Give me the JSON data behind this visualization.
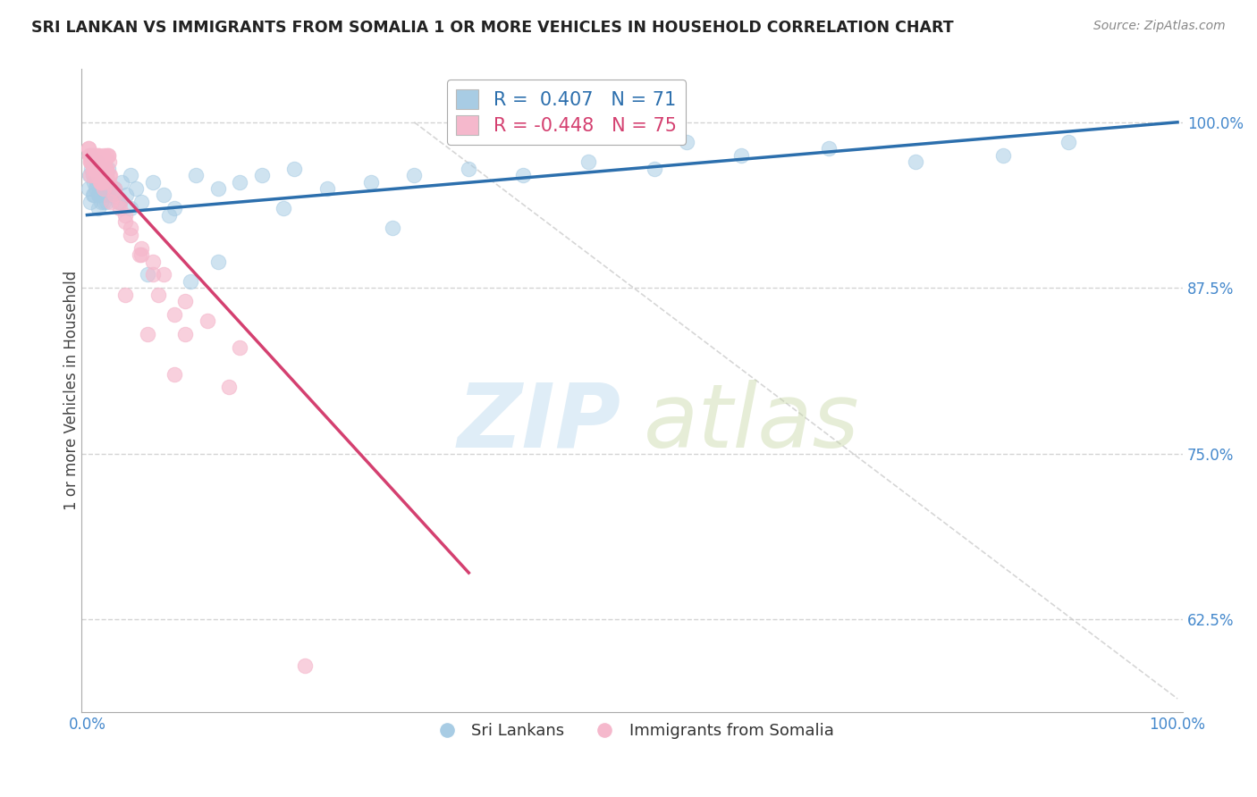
{
  "title": "SRI LANKAN VS IMMIGRANTS FROM SOMALIA 1 OR MORE VEHICLES IN HOUSEHOLD CORRELATION CHART",
  "source": "Source: ZipAtlas.com",
  "ylabel": "1 or more Vehicles in Household",
  "xlim": [
    -0.005,
    1.005
  ],
  "ylim": [
    0.555,
    1.04
  ],
  "x_tick_pos": [
    0.0,
    1.0
  ],
  "x_tick_labels": [
    "0.0%",
    "100.0%"
  ],
  "y_ticks": [
    0.625,
    0.75,
    0.875,
    1.0
  ],
  "y_tick_labels": [
    "62.5%",
    "75.0%",
    "87.5%",
    "100.0%"
  ],
  "sri_lankan_R": 0.407,
  "sri_lankan_N": 71,
  "somalia_R": -0.448,
  "somalia_N": 75,
  "blue_color": "#a8cce4",
  "blue_line_color": "#2c6fad",
  "pink_color": "#f5b8cc",
  "pink_line_color": "#d44070",
  "legend_label_blue": "Sri Lankans",
  "legend_label_pink": "Immigrants from Somalia",
  "watermark_zip": "ZIP",
  "watermark_atlas": "atlas",
  "background_color": "#ffffff",
  "grid_color": "#d0d0d0",
  "title_color": "#222222",
  "source_color": "#888888",
  "axis_tick_color": "#4488cc",
  "label_color": "#444444",
  "sri_lankan_x": [
    0.001,
    0.002,
    0.003,
    0.004,
    0.005,
    0.006,
    0.007,
    0.008,
    0.009,
    0.01,
    0.011,
    0.012,
    0.013,
    0.014,
    0.015,
    0.016,
    0.017,
    0.018,
    0.019,
    0.02,
    0.003,
    0.005,
    0.007,
    0.009,
    0.011,
    0.013,
    0.015,
    0.017,
    0.019,
    0.022,
    0.025,
    0.028,
    0.032,
    0.036,
    0.04,
    0.045,
    0.05,
    0.06,
    0.07,
    0.08,
    0.1,
    0.12,
    0.14,
    0.16,
    0.19,
    0.22,
    0.26,
    0.3,
    0.35,
    0.4,
    0.46,
    0.52,
    0.6,
    0.68,
    0.76,
    0.84,
    0.9,
    0.006,
    0.01,
    0.014,
    0.018,
    0.024,
    0.03,
    0.04,
    0.055,
    0.075,
    0.095,
    0.12,
    0.18,
    0.28,
    0.55
  ],
  "sri_lankan_y": [
    0.95,
    0.96,
    0.94,
    0.965,
    0.945,
    0.955,
    0.96,
    0.95,
    0.97,
    0.945,
    0.955,
    0.965,
    0.94,
    0.95,
    0.96,
    0.945,
    0.955,
    0.94,
    0.965,
    0.95,
    0.975,
    0.96,
    0.965,
    0.955,
    0.945,
    0.96,
    0.94,
    0.95,
    0.955,
    0.945,
    0.95,
    0.94,
    0.955,
    0.945,
    0.96,
    0.95,
    0.94,
    0.955,
    0.945,
    0.935,
    0.96,
    0.95,
    0.955,
    0.96,
    0.965,
    0.95,
    0.955,
    0.96,
    0.965,
    0.96,
    0.97,
    0.965,
    0.975,
    0.98,
    0.97,
    0.975,
    0.985,
    0.945,
    0.935,
    0.955,
    0.95,
    0.945,
    0.94,
    0.935,
    0.885,
    0.93,
    0.88,
    0.895,
    0.935,
    0.92,
    0.985
  ],
  "somalia_x": [
    0.001,
    0.002,
    0.003,
    0.004,
    0.005,
    0.006,
    0.007,
    0.008,
    0.009,
    0.01,
    0.011,
    0.012,
    0.013,
    0.014,
    0.015,
    0.016,
    0.017,
    0.018,
    0.019,
    0.02,
    0.002,
    0.004,
    0.006,
    0.008,
    0.01,
    0.012,
    0.014,
    0.016,
    0.018,
    0.02,
    0.003,
    0.005,
    0.007,
    0.009,
    0.011,
    0.013,
    0.015,
    0.017,
    0.019,
    0.021,
    0.025,
    0.03,
    0.035,
    0.04,
    0.05,
    0.06,
    0.07,
    0.09,
    0.11,
    0.14,
    0.035,
    0.055,
    0.08,
    0.01,
    0.02,
    0.03,
    0.04,
    0.05,
    0.06,
    0.08,
    0.003,
    0.007,
    0.012,
    0.018,
    0.025,
    0.035,
    0.048,
    0.065,
    0.09,
    0.13,
    0.001,
    0.005,
    0.015,
    0.022,
    0.2
  ],
  "somalia_y": [
    0.98,
    0.975,
    0.97,
    0.975,
    0.965,
    0.975,
    0.97,
    0.96,
    0.97,
    0.975,
    0.965,
    0.97,
    0.955,
    0.965,
    0.975,
    0.97,
    0.96,
    0.965,
    0.975,
    0.97,
    0.975,
    0.97,
    0.965,
    0.975,
    0.96,
    0.965,
    0.955,
    0.97,
    0.975,
    0.96,
    0.97,
    0.96,
    0.975,
    0.965,
    0.97,
    0.955,
    0.96,
    0.965,
    0.975,
    0.96,
    0.95,
    0.94,
    0.93,
    0.92,
    0.905,
    0.895,
    0.885,
    0.865,
    0.85,
    0.83,
    0.87,
    0.84,
    0.81,
    0.975,
    0.955,
    0.935,
    0.915,
    0.9,
    0.885,
    0.855,
    0.96,
    0.965,
    0.955,
    0.96,
    0.945,
    0.925,
    0.9,
    0.87,
    0.84,
    0.8,
    0.98,
    0.97,
    0.95,
    0.94,
    0.59
  ],
  "diag_line_x": [
    0.3,
    1.0
  ],
  "diag_line_y": [
    1.0,
    0.565
  ],
  "pink_trend_x_end": 0.35,
  "blue_trend_x_start": 0.0,
  "blue_trend_x_end": 1.0
}
